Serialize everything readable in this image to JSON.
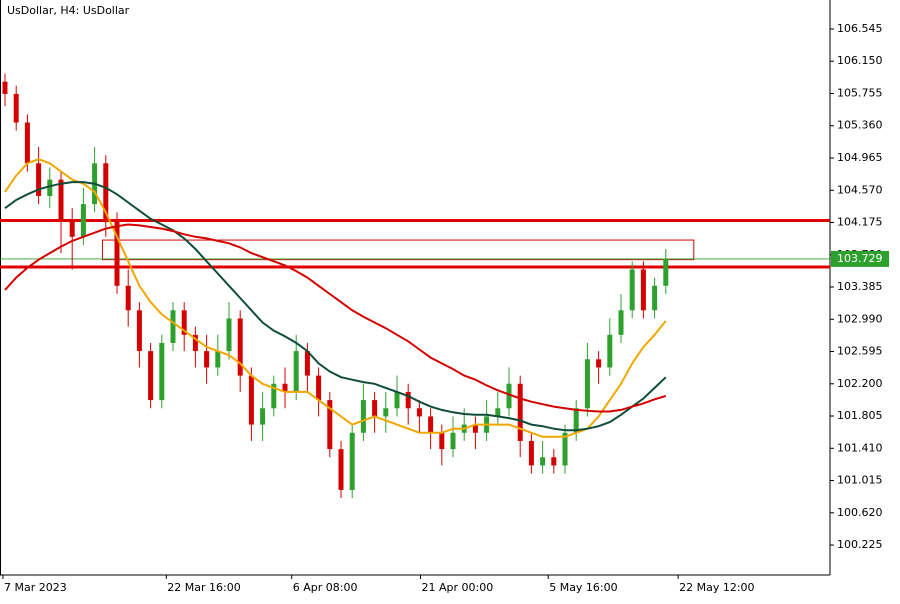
{
  "chart_data": {
    "type": "candlestick",
    "title": "UsDollar, H4:  UsDollar",
    "up_color": "#2ea02e",
    "down_color": "#d40000",
    "open": [
      105.9,
      105.75,
      105.4,
      104.9,
      104.5,
      104.7,
      104.2,
      104.0,
      104.4,
      104.9,
      104.2,
      103.4,
      103.1,
      102.6,
      102.0,
      102.7,
      103.1,
      102.8,
      102.6,
      102.4,
      102.6,
      103.0,
      102.3,
      101.7,
      101.9,
      102.2,
      102.1,
      102.6,
      102.3,
      102.0,
      101.4,
      100.9,
      101.6,
      102.0,
      101.8,
      101.9,
      102.1,
      101.9,
      101.8,
      101.6,
      101.4,
      101.6,
      101.7,
      101.6,
      101.8,
      101.9,
      102.2,
      101.5,
      101.2,
      101.3,
      101.2,
      101.6,
      101.9,
      102.5,
      102.4,
      102.8,
      103.1,
      103.6,
      103.1,
      103.4
    ],
    "high": [
      106.0,
      105.85,
      105.5,
      105.1,
      104.85,
      104.8,
      104.35,
      104.6,
      105.1,
      105.0,
      104.3,
      103.6,
      103.2,
      102.7,
      102.8,
      103.2,
      103.2,
      102.9,
      102.8,
      102.8,
      103.2,
      103.1,
      102.4,
      102.1,
      102.3,
      102.4,
      102.8,
      102.7,
      102.4,
      102.1,
      101.5,
      101.7,
      102.2,
      102.1,
      102.1,
      102.3,
      102.2,
      102.0,
      101.9,
      101.7,
      101.8,
      101.9,
      101.8,
      102.0,
      102.1,
      102.4,
      102.3,
      101.6,
      101.5,
      101.4,
      101.7,
      102.0,
      102.7,
      102.6,
      103.0,
      103.3,
      103.7,
      103.7,
      103.5,
      103.85
    ],
    "low": [
      105.6,
      105.3,
      104.8,
      104.4,
      104.35,
      103.8,
      103.6,
      103.9,
      104.3,
      104.0,
      103.3,
      102.9,
      102.4,
      101.9,
      101.9,
      102.6,
      102.6,
      102.4,
      102.2,
      102.3,
      102.5,
      102.1,
      101.5,
      101.5,
      101.8,
      101.9,
      102.0,
      102.1,
      101.8,
      101.3,
      100.8,
      100.8,
      101.5,
      101.6,
      101.6,
      101.8,
      101.7,
      101.6,
      101.4,
      101.2,
      101.3,
      101.5,
      101.4,
      101.5,
      101.7,
      101.8,
      101.3,
      101.1,
      101.1,
      101.1,
      101.1,
      101.5,
      101.8,
      102.2,
      102.3,
      102.7,
      103.0,
      103.0,
      103.0,
      103.3
    ],
    "close": [
      105.75,
      105.4,
      104.9,
      104.5,
      104.7,
      104.2,
      104.0,
      104.4,
      104.9,
      104.2,
      103.4,
      103.1,
      102.6,
      102.0,
      102.7,
      103.1,
      102.8,
      102.6,
      102.4,
      102.6,
      103.0,
      102.3,
      101.7,
      101.9,
      102.2,
      102.1,
      102.6,
      102.3,
      102.0,
      101.4,
      100.9,
      101.6,
      102.0,
      101.8,
      101.9,
      102.1,
      101.9,
      101.8,
      101.6,
      101.4,
      101.6,
      101.7,
      101.6,
      101.8,
      101.9,
      102.2,
      101.5,
      101.2,
      101.3,
      101.2,
      101.6,
      101.9,
      102.5,
      102.4,
      102.8,
      103.1,
      103.6,
      103.1,
      103.4,
      103.73
    ],
    "series": [
      {
        "color": "#f0a800",
        "values": [
          104.55,
          104.75,
          104.9,
          104.95,
          104.9,
          104.8,
          104.7,
          104.65,
          104.55,
          104.3,
          104.0,
          103.7,
          103.4,
          103.2,
          103.05,
          102.95,
          102.85,
          102.75,
          102.65,
          102.6,
          102.55,
          102.45,
          102.3,
          102.2,
          102.15,
          102.1,
          102.1,
          102.1,
          102.0,
          101.9,
          101.8,
          101.7,
          101.75,
          101.8,
          101.75,
          101.7,
          101.65,
          101.6,
          101.6,
          101.6,
          101.65,
          101.65,
          101.7,
          101.7,
          101.7,
          101.7,
          101.65,
          101.6,
          101.55,
          101.55,
          101.55,
          101.6,
          101.65,
          101.8,
          102.0,
          102.2,
          102.45,
          102.65,
          102.8,
          102.97
        ]
      },
      {
        "color": "#0f4d3a",
        "values": [
          104.35,
          104.45,
          104.52,
          104.58,
          104.62,
          104.65,
          104.67,
          104.67,
          104.65,
          104.6,
          104.52,
          104.42,
          104.32,
          104.22,
          104.15,
          104.08,
          103.98,
          103.85,
          103.7,
          103.55,
          103.4,
          103.25,
          103.1,
          102.95,
          102.85,
          102.78,
          102.7,
          102.6,
          102.45,
          102.35,
          102.28,
          102.25,
          102.22,
          102.2,
          102.15,
          102.1,
          102.05,
          101.98,
          101.92,
          101.88,
          101.85,
          101.83,
          101.82,
          101.82,
          101.8,
          101.78,
          101.75,
          101.7,
          101.68,
          101.65,
          101.63,
          101.63,
          101.65,
          101.68,
          101.73,
          101.82,
          101.92,
          102.02,
          102.15,
          102.28
        ]
      },
      {
        "color": "#d40000",
        "values": [
          103.35,
          103.5,
          103.62,
          103.72,
          103.8,
          103.88,
          103.95,
          104.0,
          104.05,
          104.1,
          104.13,
          104.15,
          104.14,
          104.12,
          104.1,
          104.07,
          104.03,
          104.0,
          103.98,
          103.95,
          103.92,
          103.87,
          103.8,
          103.75,
          103.7,
          103.65,
          103.58,
          103.5,
          103.4,
          103.3,
          103.2,
          103.1,
          103.02,
          102.95,
          102.88,
          102.8,
          102.72,
          102.62,
          102.52,
          102.45,
          102.38,
          102.3,
          102.25,
          102.18,
          102.12,
          102.07,
          102.02,
          101.98,
          101.95,
          101.92,
          101.9,
          101.88,
          101.87,
          101.86,
          101.86,
          101.88,
          101.92,
          101.96,
          102.01,
          102.05
        ]
      }
    ],
    "levels": [
      104.2,
      103.63
    ],
    "level_color": "#e00000",
    "zone": {
      "x": [
        8.7,
        61.5
      ],
      "y": [
        103.72,
        103.96
      ],
      "color": "#d40000"
    },
    "last_price": 103.729,
    "last_price_color": "#2ea02e",
    "xlim": [
      -0.446,
      73.66
    ],
    "xticks": [
      {
        "value": -0.18,
        "label": "7 Mar 2023"
      },
      {
        "value": 14.4,
        "label": "22 Mar 16:00"
      },
      {
        "value": 25.6,
        "label": "6 Apr 08:00"
      },
      {
        "value": 37.1,
        "label": "21 Apr 00:00"
      },
      {
        "value": 48.5,
        "label": "5 May 16:00"
      },
      {
        "value": 60.1,
        "label": "22 May 12:00"
      }
    ],
    "ylim": [
      99.858,
      106.9
    ],
    "yticks": [
      106.545,
      {
        "value": 106.15,
        "label": "106.150"
      },
      105.755,
      {
        "value": 105.36,
        "label": "105.360"
      },
      104.965,
      {
        "value": 104.57,
        "label": "104.570"
      },
      104.175,
      {
        "value": 103.78,
        "label": "103.780"
      },
      103.385,
      {
        "value": 102.99,
        "label": "102.990"
      },
      102.595,
      {
        "value": 102.2,
        "label": "102.200"
      },
      101.805,
      {
        "value": 101.41,
        "label": "101.410"
      },
      101.015,
      {
        "value": 100.62,
        "label": "100.620"
      },
      100.225
    ]
  }
}
